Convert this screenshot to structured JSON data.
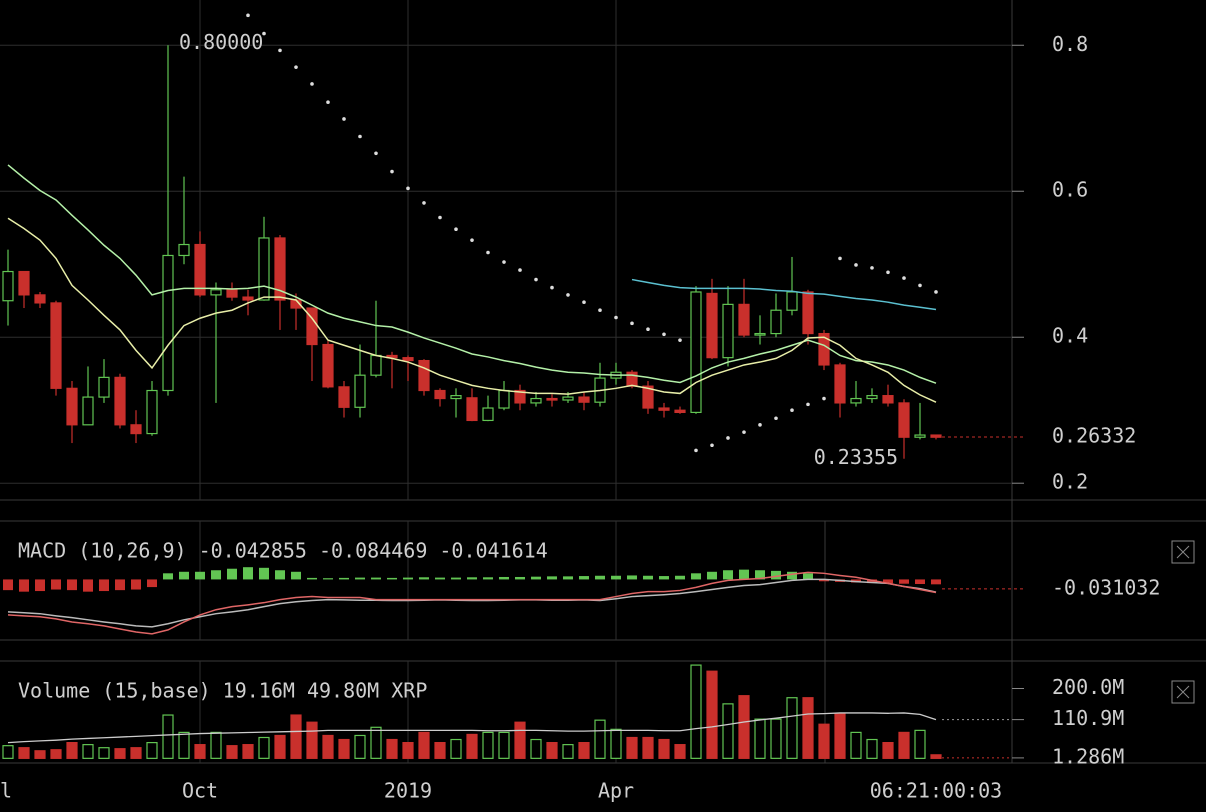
{
  "chart_data": [
    {
      "type": "candlestick",
      "candles": {
        "open": [
          0.45,
          0.49,
          0.458,
          0.447,
          0.33,
          0.28,
          0.318,
          0.345,
          0.28,
          0.268,
          0.327,
          0.512,
          0.527,
          0.458,
          0.465,
          0.455,
          0.451,
          0.536,
          0.451,
          0.44,
          0.39,
          0.332,
          0.304,
          0.348,
          0.375,
          0.372,
          0.368,
          0.327,
          0.316,
          0.317,
          0.286,
          0.303,
          0.327,
          0.31,
          0.316,
          0.314,
          0.318,
          0.311,
          0.344,
          0.352,
          0.333,
          0.303,
          0.3,
          0.297,
          0.46,
          0.372,
          0.445,
          0.403,
          0.405,
          0.437,
          0.462,
          0.405,
          0.362,
          0.31,
          0.316,
          0.32,
          0.31,
          0.263,
          0.266
        ],
        "high": [
          0.52,
          0.49,
          0.462,
          0.45,
          0.34,
          0.36,
          0.37,
          0.35,
          0.3,
          0.34,
          0.8,
          0.62,
          0.545,
          0.475,
          0.475,
          0.465,
          0.565,
          0.54,
          0.46,
          0.44,
          0.395,
          0.34,
          0.39,
          0.45,
          0.38,
          0.375,
          0.37,
          0.33,
          0.33,
          0.33,
          0.32,
          0.34,
          0.335,
          0.325,
          0.322,
          0.325,
          0.325,
          0.365,
          0.365,
          0.355,
          0.34,
          0.31,
          0.305,
          0.47,
          0.48,
          0.47,
          0.48,
          0.43,
          0.46,
          0.51,
          0.465,
          0.41,
          0.365,
          0.34,
          0.33,
          0.335,
          0.315,
          0.31,
          0.266
        ],
        "low": [
          0.416,
          0.44,
          0.44,
          0.32,
          0.255,
          0.28,
          0.31,
          0.275,
          0.255,
          0.265,
          0.32,
          0.5,
          0.455,
          0.31,
          0.45,
          0.43,
          0.45,
          0.41,
          0.41,
          0.34,
          0.33,
          0.29,
          0.29,
          0.345,
          0.33,
          0.34,
          0.32,
          0.305,
          0.29,
          0.285,
          0.285,
          0.3,
          0.3,
          0.305,
          0.305,
          0.31,
          0.3,
          0.305,
          0.335,
          0.33,
          0.295,
          0.29,
          0.295,
          0.295,
          0.37,
          0.36,
          0.4,
          0.39,
          0.4,
          0.43,
          0.39,
          0.355,
          0.29,
          0.305,
          0.31,
          0.305,
          0.23355,
          0.26,
          0.26
        ],
        "close": [
          0.49,
          0.458,
          0.447,
          0.33,
          0.28,
          0.318,
          0.345,
          0.28,
          0.268,
          0.327,
          0.512,
          0.527,
          0.458,
          0.465,
          0.455,
          0.451,
          0.536,
          0.451,
          0.44,
          0.39,
          0.332,
          0.304,
          0.348,
          0.375,
          0.372,
          0.368,
          0.327,
          0.316,
          0.32,
          0.286,
          0.303,
          0.327,
          0.31,
          0.316,
          0.314,
          0.318,
          0.311,
          0.344,
          0.352,
          0.333,
          0.303,
          0.3,
          0.297,
          0.462,
          0.372,
          0.445,
          0.403,
          0.405,
          0.437,
          0.462,
          0.405,
          0.362,
          0.31,
          0.316,
          0.32,
          0.31,
          0.263,
          0.266,
          0.263
        ]
      },
      "up_color": "#62c553",
      "down_color": "#c9302c",
      "series": [
        {
          "color": "#b4f0a8",
          "values": [
            0.636,
            0.618,
            0.601,
            0.588,
            0.567,
            0.547,
            0.526,
            0.508,
            0.485,
            0.458,
            0.464,
            0.467,
            0.467,
            0.467,
            0.466,
            0.467,
            0.47,
            0.464,
            0.455,
            0.444,
            0.433,
            0.426,
            0.421,
            0.416,
            0.414,
            0.407,
            0.399,
            0.392,
            0.385,
            0.377,
            0.373,
            0.368,
            0.364,
            0.359,
            0.355,
            0.352,
            0.351,
            0.349,
            0.348,
            0.348,
            0.345,
            0.341,
            0.338,
            0.347,
            0.358,
            0.366,
            0.371,
            0.377,
            0.382,
            0.389,
            0.396,
            0.389,
            0.375,
            0.368,
            0.366,
            0.362,
            0.355,
            0.345,
            0.337
          ]
        },
        {
          "color": "#e8eea8",
          "values": [
            0.563,
            0.549,
            0.533,
            0.508,
            0.471,
            0.451,
            0.43,
            0.41,
            0.382,
            0.358,
            0.389,
            0.416,
            0.426,
            0.433,
            0.437,
            0.447,
            0.455,
            0.455,
            0.451,
            0.426,
            0.396,
            0.389,
            0.382,
            0.375,
            0.371,
            0.366,
            0.358,
            0.348,
            0.341,
            0.334,
            0.33,
            0.327,
            0.325,
            0.323,
            0.323,
            0.322,
            0.325,
            0.327,
            0.33,
            0.334,
            0.33,
            0.325,
            0.323,
            0.338,
            0.348,
            0.355,
            0.362,
            0.366,
            0.371,
            0.382,
            0.399,
            0.4,
            0.389,
            0.371,
            0.362,
            0.352,
            0.334,
            0.321,
            0.311
          ]
        },
        {
          "color": "#5bc0d0",
          "values": [
            null,
            null,
            null,
            null,
            null,
            null,
            null,
            null,
            null,
            null,
            null,
            null,
            null,
            null,
            null,
            null,
            null,
            null,
            null,
            null,
            null,
            null,
            null,
            null,
            null,
            null,
            null,
            null,
            null,
            null,
            null,
            null,
            null,
            null,
            null,
            null,
            null,
            null,
            null,
            0.479,
            0.475,
            0.471,
            0.468,
            0.467,
            0.467,
            0.467,
            0.467,
            0.466,
            0.464,
            0.463,
            0.46,
            0.459,
            0.456,
            0.453,
            0.451,
            0.448,
            0.444,
            0.441,
            0.438
          ]
        }
      ],
      "sar": {
        "color": "#dddddd",
        "values": [
          null,
          null,
          null,
          null,
          null,
          null,
          null,
          null,
          null,
          null,
          null,
          null,
          null,
          null,
          null,
          0.841,
          0.816,
          0.793,
          0.77,
          0.747,
          0.722,
          0.699,
          0.675,
          0.652,
          0.627,
          0.604,
          0.584,
          0.564,
          0.548,
          0.533,
          0.516,
          0.503,
          0.492,
          0.479,
          0.468,
          0.458,
          0.448,
          0.437,
          0.427,
          0.419,
          0.411,
          0.404,
          0.396,
          0.245,
          0.252,
          0.262,
          0.27,
          0.28,
          0.289,
          0.3,
          0.308,
          0.316,
          0.508,
          0.499,
          0.495,
          0.489,
          0.481,
          0.471,
          0.462
        ]
      },
      "annotations": [
        {
          "text": "0.80000",
          "value": 0.8,
          "index": 10
        },
        {
          "text": "0.23355",
          "value": 0.23355,
          "index": 56
        }
      ],
      "last_price": 0.26332,
      "ylim": [
        0.177,
        0.862
      ],
      "yticks": [
        0.8,
        0.6,
        0.4,
        0.2
      ],
      "grid": true
    },
    {
      "type": "macd",
      "legend": "MACD (10,26,9)",
      "legend_values": [
        -0.042855,
        -0.084469,
        -0.041614
      ],
      "legend_colors": [
        "#e0524c",
        "#e0524c",
        "#cfcfcf"
      ],
      "histogram": [
        -0.035,
        -0.04,
        -0.038,
        -0.033,
        -0.035,
        -0.04,
        -0.038,
        -0.035,
        -0.033,
        -0.025,
        0.02,
        0.025,
        0.025,
        0.03,
        0.035,
        0.04,
        0.038,
        0.03,
        0.025,
        0.005,
        0.004,
        0.005,
        0.006,
        0.006,
        0.005,
        0.006,
        0.007,
        0.006,
        0.006,
        0.007,
        0.007,
        0.008,
        0.008,
        0.009,
        0.01,
        0.01,
        0.011,
        0.012,
        0.012,
        0.013,
        0.012,
        0.011,
        0.012,
        0.02,
        0.025,
        0.03,
        0.032,
        0.03,
        0.028,
        0.025,
        0.02,
        -0.006,
        -0.008,
        -0.01,
        -0.012,
        -0.013,
        -0.014,
        -0.015,
        -0.016
      ],
      "series": [
        {
          "color": "#bbbbbb",
          "values": [
            -0.106,
            -0.109,
            -0.112,
            -0.119,
            -0.125,
            -0.132,
            -0.139,
            -0.145,
            -0.152,
            -0.155,
            -0.145,
            -0.132,
            -0.122,
            -0.112,
            -0.106,
            -0.099,
            -0.089,
            -0.079,
            -0.073,
            -0.069,
            -0.066,
            -0.067,
            -0.068,
            -0.068,
            -0.069,
            -0.069,
            -0.068,
            -0.067,
            -0.068,
            -0.069,
            -0.069,
            -0.068,
            -0.067,
            -0.067,
            -0.068,
            -0.068,
            -0.067,
            -0.069,
            -0.063,
            -0.056,
            -0.053,
            -0.05,
            -0.046,
            -0.04,
            -0.033,
            -0.026,
            -0.02,
            -0.017,
            -0.01,
            -0.003,
            0,
            0,
            -0.003,
            -0.007,
            -0.01,
            -0.013,
            -0.023,
            -0.03,
            -0.041614
          ]
        },
        {
          "color": "#e06666",
          "values": [
            -0.116,
            -0.119,
            -0.122,
            -0.129,
            -0.139,
            -0.145,
            -0.152,
            -0.162,
            -0.172,
            -0.178,
            -0.165,
            -0.139,
            -0.116,
            -0.099,
            -0.089,
            -0.083,
            -0.076,
            -0.066,
            -0.059,
            -0.056,
            -0.059,
            -0.059,
            -0.059,
            -0.066,
            -0.066,
            -0.066,
            -0.066,
            -0.066,
            -0.066,
            -0.066,
            -0.066,
            -0.066,
            -0.066,
            -0.066,
            -0.066,
            -0.066,
            -0.066,
            -0.066,
            -0.056,
            -0.046,
            -0.04,
            -0.04,
            -0.036,
            -0.026,
            -0.013,
            -0.003,
            0,
            0.003,
            0.01,
            0.017,
            0.023,
            0.02,
            0.013,
            0.007,
            -0.003,
            -0.013,
            -0.023,
            -0.033,
            -0.042855
          ]
        }
      ],
      "up_color": "#62c553",
      "down_color": "#c9302c",
      "last_value": -0.031032,
      "ylim": [
        -0.198,
        0.191
      ]
    },
    {
      "type": "bar",
      "legend": "Volume (15,base)",
      "legend_values": [
        "19.16M",
        "49.80M XRP"
      ],
      "legend_colors": [
        "#e0524c",
        "#cfcfcf"
      ],
      "values": [
        36.3,
        30.5,
        21.7,
        24.7,
        45.1,
        39.3,
        30.5,
        27.6,
        30.5,
        45.1,
        124,
        74.3,
        39.3,
        74.3,
        36.3,
        39.3,
        59.7,
        65.5,
        124,
        103.5,
        65.5,
        53.9,
        65.5,
        88.9,
        53.9,
        45.1,
        74.3,
        45.1,
        53.9,
        68.5,
        74.3,
        74.3,
        103.5,
        53.9,
        45.1,
        39.3,
        45.1,
        109.3,
        83.1,
        59.7,
        59.7,
        53.9,
        39.3,
        267,
        249.5,
        156,
        179.4,
        112.3,
        112.3,
        173.6,
        173.6,
        97.7,
        126.9,
        74.3,
        53.9,
        45.1,
        74.3,
        80.1,
        10.1
      ],
      "ma": {
        "color": "#cccccc",
        "values": [
          45,
          48,
          50,
          52,
          55,
          57,
          59,
          61,
          63,
          65,
          67,
          69,
          71,
          72,
          73,
          74,
          75,
          76,
          77,
          78,
          80,
          80,
          80,
          80,
          80,
          80,
          80,
          80,
          80,
          80,
          79,
          79,
          80,
          80,
          79,
          78,
          78,
          79,
          80,
          80,
          80,
          79,
          79,
          85,
          90,
          97,
          104,
          110,
          115,
          121,
          127,
          128,
          130,
          130,
          130,
          129,
          130,
          126,
          110.9
        ]
      },
      "categories": [
        null,
        null,
        null,
        null,
        null,
        null,
        null,
        null,
        null,
        null,
        null,
        null,
        "Oct",
        null,
        null,
        null,
        null,
        null,
        null,
        null,
        null,
        null,
        null,
        null,
        null,
        "2019",
        null,
        null,
        null,
        null,
        null,
        null,
        null,
        null,
        null,
        null,
        null,
        null,
        "Apr",
        null,
        null,
        null,
        null,
        null,
        null,
        null,
        null,
        null,
        null,
        null,
        null,
        null,
        null,
        null,
        null,
        null,
        null,
        null,
        null
      ],
      "x_left_label": "l",
      "countdown": "06:21:00:03",
      "ylim": [
        -13.3,
        278.7
      ],
      "yticks": [
        {
          "value": 200,
          "label": "200.0M"
        },
        {
          "value": 110.9,
          "label": "110.9M"
        },
        {
          "value": 1.286,
          "label": "1.286M"
        }
      ]
    }
  ]
}
